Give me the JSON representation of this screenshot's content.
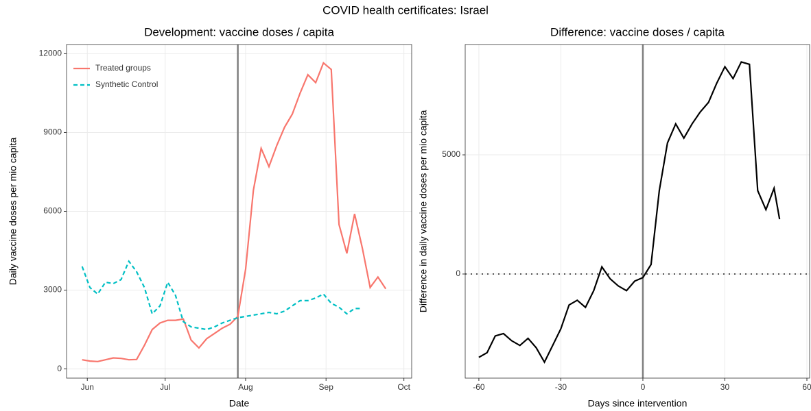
{
  "title": "COVID health certificates: Israel",
  "chart_data": [
    {
      "type": "line",
      "title": "Development: vaccine doses / capita",
      "xlabel": "Date",
      "ylabel": "Daily vaccine doses per mio capita",
      "x": [
        -60,
        -57,
        -54,
        -51,
        -48,
        -45,
        -42,
        -39,
        -36,
        -33,
        -30,
        -27,
        -24,
        -21,
        -18,
        -15,
        -12,
        -9,
        -6,
        -3,
        0,
        3,
        6,
        9,
        12,
        15,
        18,
        21,
        24,
        27,
        30,
        33,
        36,
        39,
        42,
        45,
        48,
        51,
        54,
        57
      ],
      "series": [
        {
          "name": "Treated groups",
          "color": "#f8766d",
          "linestyle": "solid",
          "values": [
            350,
            300,
            280,
            350,
            420,
            400,
            350,
            360,
            900,
            1500,
            1750,
            1850,
            1850,
            1900,
            1100,
            800,
            1150,
            1350,
            1550,
            1700,
            2000,
            3800,
            6800,
            8400,
            7700,
            8500,
            9200,
            9700,
            10500,
            11200,
            10900,
            11650,
            11400,
            5500,
            4400,
            5900,
            4600,
            3100,
            3500,
            3050
          ]
        },
        {
          "name": "Synthetic Control",
          "color": "#00bfc4",
          "linestyle": "dashed",
          "values": [
            3900,
            3100,
            2850,
            3300,
            3250,
            3400,
            4100,
            3700,
            3100,
            2100,
            2400,
            3300,
            2800,
            1800,
            1600,
            1550,
            1500,
            1600,
            1750,
            1850,
            1950,
            2000,
            2050,
            2100,
            2150,
            2100,
            2200,
            2400,
            2600,
            2600,
            2700,
            2850,
            2500,
            2350,
            2100,
            2300,
            2300,
            null,
            null,
            null
          ]
        }
      ],
      "xlim": [
        -66,
        67
      ],
      "xticks": [
        {
          "value": -58,
          "label": "Jun"
        },
        {
          "value": -28,
          "label": "Jul"
        },
        {
          "value": 3,
          "label": "Aug"
        },
        {
          "value": 34,
          "label": "Sep"
        },
        {
          "value": 64,
          "label": "Oct"
        }
      ],
      "ylim": [
        -350,
        12350
      ],
      "yticks": [
        0,
        3000,
        6000,
        9000,
        12000
      ],
      "vline": 0,
      "grid": true,
      "legend": "top-left"
    },
    {
      "type": "line",
      "title": "Difference: vaccine doses / capita",
      "xlabel": "Days since intervention",
      "ylabel": "Difference in daily vaccine doses per mio capita",
      "x": [
        -60,
        -57,
        -54,
        -51,
        -48,
        -45,
        -42,
        -39,
        -36,
        -33,
        -30,
        -27,
        -24,
        -21,
        -18,
        -15,
        -12,
        -9,
        -6,
        -3,
        0,
        3,
        6,
        9,
        12,
        15,
        18,
        21,
        24,
        27,
        30,
        33,
        36,
        39,
        42,
        45,
        48,
        50
      ],
      "values": [
        -3500,
        -3300,
        -2600,
        -2500,
        -2800,
        -3000,
        -2700,
        -3100,
        -3700,
        -3000,
        -2300,
        -1300,
        -1100,
        -1400,
        -700,
        300,
        -200,
        -500,
        -700,
        -300,
        -150,
        400,
        3500,
        5500,
        6300,
        5700,
        6300,
        6800,
        7200,
        8000,
        8700,
        8200,
        8900,
        8800,
        3500,
        2700,
        3600,
        2300
      ],
      "color": "#000000",
      "xlim": [
        -65,
        61
      ],
      "xticks": [
        -60,
        -30,
        0,
        30,
        60
      ],
      "ylim": [
        -4370,
        9630
      ],
      "yticks": [
        0,
        5000
      ],
      "vline": 0,
      "hline": 0,
      "grid": true
    }
  ]
}
